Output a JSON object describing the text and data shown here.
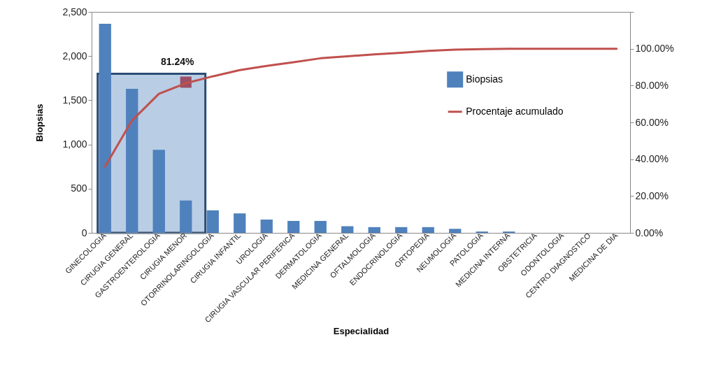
{
  "chart_data": {
    "type": "bar",
    "xlabel": "Especialidad",
    "ylabel": "Biopsias",
    "categories": [
      "GINECOLOGIA",
      "CIRUGIA GENERAL",
      "GASTROENTEROLOGIA",
      "CIRUGIA MENOR",
      "OTORRINOLARINGOLOGIA",
      "CIRUGIA INFANTIL",
      "UROLOGIA",
      "CIRUGIA VASCULAR PERIFERICA",
      "DERMATOLOGIA",
      "MEDICINA GENERAL",
      "OFTALMOLOGIA",
      "ENDOCRINOLOGIA",
      "ORTOPEDIA",
      "NEUMOLOGIA",
      "PATOLOGIA",
      "MEDICINA INTERNA",
      "OBSTETRICIA",
      "ODONTOLOGIA",
      "CENTRO DIAGNOSTICO",
      "MEDICINA DE DIA"
    ],
    "series": [
      {
        "name": "Biopsias",
        "color": "#4f81bd",
        "values": [
          2365,
          1630,
          940,
          365,
          255,
          220,
          150,
          135,
          135,
          75,
          65,
          65,
          65,
          45,
          15,
          15,
          0,
          0,
          0,
          0
        ]
      },
      {
        "name": "Procentaje acumulado",
        "type": "line",
        "axis": "y2",
        "color": "#c0504d",
        "values": [
          36,
          61,
          75.5,
          81.24,
          85,
          88.4,
          90.7,
          92.7,
          94.8,
          95.9,
          96.9,
          97.8,
          98.8,
          99.5,
          99.8,
          100,
          100,
          100,
          100,
          100
        ]
      }
    ],
    "ylim": [
      0,
      2500
    ],
    "yticks": [
      {
        "value": 0,
        "label": "0"
      },
      {
        "value": 500,
        "label": "500"
      },
      {
        "value": 1000,
        "label": "1,000"
      },
      {
        "value": 1500,
        "label": "1,500"
      },
      {
        "value": 2000,
        "label": "2,000"
      },
      {
        "value": 2500,
        "label": "2,500"
      }
    ],
    "y2lim": [
      0,
      120
    ],
    "y2ticks": [
      {
        "value": 0,
        "label": "0.00%"
      },
      {
        "value": 20,
        "label": "20.00%"
      },
      {
        "value": 40,
        "label": "40.00%"
      },
      {
        "value": 60,
        "label": "60.00%"
      },
      {
        "value": 80,
        "label": "80.00%"
      },
      {
        "value": 100,
        "label": "100.00%"
      },
      {
        "value": 120,
        "label": null
      }
    ],
    "annotations": [
      "81.24%"
    ],
    "legend": "top right"
  }
}
